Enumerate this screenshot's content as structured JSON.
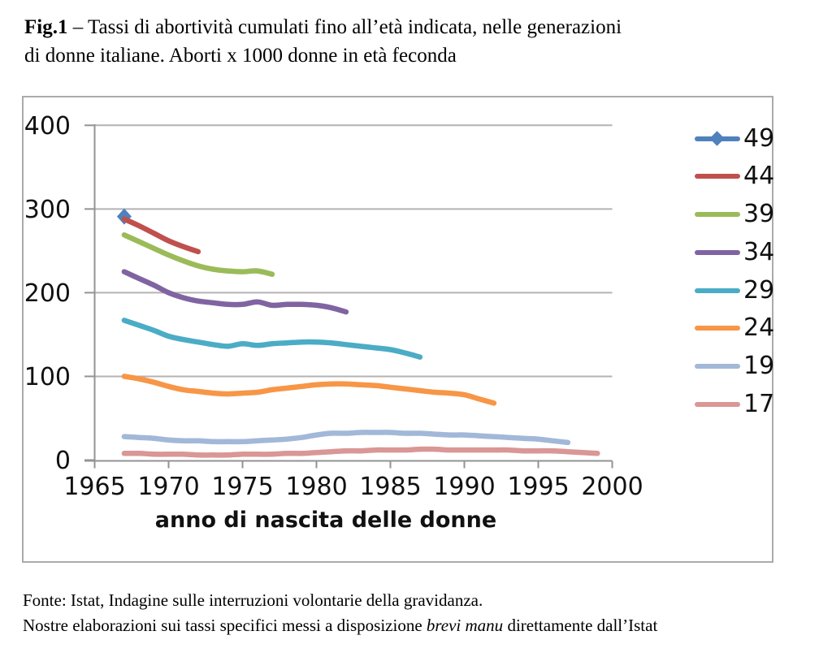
{
  "header": {
    "fig_label": "Fig.1",
    "title_line1": "– Tassi di abortività cumulati fino all’età indicata, nelle generazioni",
    "title_line2": "di donne italiane. Aborti x 1000 donne in età feconda"
  },
  "chart_data": {
    "type": "line",
    "xlabel": "anno di nascita delle donne",
    "ylabel": "",
    "xlim": [
      1965,
      2000
    ],
    "ylim": [
      0,
      400
    ],
    "xticks": [
      1965,
      1970,
      1975,
      1980,
      1985,
      1990,
      1995,
      2000
    ],
    "yticks": [
      0,
      100,
      200,
      300,
      400
    ],
    "grid": "horizontal",
    "legend_position": "right",
    "grid_color": "#B3B3B3",
    "axis_color": "#939393",
    "series": [
      {
        "name": "49",
        "color": "#4F81BD",
        "marker": "diamond",
        "points": [
          [
            1967,
            291
          ]
        ]
      },
      {
        "name": "44",
        "color": "#C0504D",
        "marker": "none",
        "points": [
          [
            1967,
            288
          ],
          [
            1968,
            280
          ],
          [
            1969,
            271
          ],
          [
            1970,
            262
          ],
          [
            1971,
            255
          ],
          [
            1972,
            249
          ]
        ]
      },
      {
        "name": "39",
        "color": "#9BBB59",
        "marker": "none",
        "points": [
          [
            1967,
            269
          ],
          [
            1968,
            261
          ],
          [
            1969,
            253
          ],
          [
            1970,
            245
          ],
          [
            1971,
            238
          ],
          [
            1972,
            232
          ],
          [
            1973,
            228
          ],
          [
            1974,
            226
          ],
          [
            1975,
            225
          ],
          [
            1976,
            226
          ],
          [
            1977,
            222
          ]
        ]
      },
      {
        "name": "34",
        "color": "#8064A2",
        "marker": "none",
        "points": [
          [
            1967,
            225
          ],
          [
            1968,
            217
          ],
          [
            1969,
            209
          ],
          [
            1970,
            200
          ],
          [
            1971,
            194
          ],
          [
            1972,
            190
          ],
          [
            1973,
            188
          ],
          [
            1974,
            186
          ],
          [
            1975,
            186
          ],
          [
            1976,
            189
          ],
          [
            1977,
            185
          ],
          [
            1978,
            186
          ],
          [
            1979,
            186
          ],
          [
            1980,
            185
          ],
          [
            1981,
            182
          ],
          [
            1982,
            177
          ]
        ]
      },
      {
        "name": "29",
        "color": "#4BACC6",
        "marker": "none",
        "points": [
          [
            1967,
            167
          ],
          [
            1968,
            161
          ],
          [
            1969,
            155
          ],
          [
            1970,
            148
          ],
          [
            1971,
            144
          ],
          [
            1972,
            141
          ],
          [
            1973,
            138
          ],
          [
            1974,
            136
          ],
          [
            1975,
            139
          ],
          [
            1976,
            137
          ],
          [
            1977,
            139
          ],
          [
            1978,
            140
          ],
          [
            1979,
            141
          ],
          [
            1980,
            141
          ],
          [
            1981,
            140
          ],
          [
            1982,
            138
          ],
          [
            1983,
            136
          ],
          [
            1984,
            134
          ],
          [
            1985,
            132
          ],
          [
            1986,
            128
          ],
          [
            1987,
            123
          ]
        ]
      },
      {
        "name": "24",
        "color": "#F79646",
        "marker": "none",
        "points": [
          [
            1967,
            100
          ],
          [
            1968,
            97
          ],
          [
            1969,
            93
          ],
          [
            1970,
            88
          ],
          [
            1971,
            84
          ],
          [
            1972,
            82
          ],
          [
            1973,
            80
          ],
          [
            1974,
            79
          ],
          [
            1975,
            80
          ],
          [
            1976,
            81
          ],
          [
            1977,
            84
          ],
          [
            1978,
            86
          ],
          [
            1979,
            88
          ],
          [
            1980,
            90
          ],
          [
            1981,
            91
          ],
          [
            1982,
            91
          ],
          [
            1983,
            90
          ],
          [
            1984,
            89
          ],
          [
            1985,
            87
          ],
          [
            1986,
            85
          ],
          [
            1987,
            83
          ],
          [
            1988,
            81
          ],
          [
            1989,
            80
          ],
          [
            1990,
            78
          ],
          [
            1991,
            73
          ],
          [
            1992,
            68
          ]
        ]
      },
      {
        "name": "19",
        "color": "#A2B8D8",
        "marker": "none",
        "points": [
          [
            1967,
            28
          ],
          [
            1968,
            27
          ],
          [
            1969,
            26
          ],
          [
            1970,
            24
          ],
          [
            1971,
            23
          ],
          [
            1972,
            23
          ],
          [
            1973,
            22
          ],
          [
            1974,
            22
          ],
          [
            1975,
            22
          ],
          [
            1976,
            23
          ],
          [
            1977,
            24
          ],
          [
            1978,
            25
          ],
          [
            1979,
            27
          ],
          [
            1980,
            30
          ],
          [
            1981,
            32
          ],
          [
            1982,
            32
          ],
          [
            1983,
            33
          ],
          [
            1984,
            33
          ],
          [
            1985,
            33
          ],
          [
            1986,
            32
          ],
          [
            1987,
            32
          ],
          [
            1988,
            31
          ],
          [
            1989,
            30
          ],
          [
            1990,
            30
          ],
          [
            1991,
            29
          ],
          [
            1992,
            28
          ],
          [
            1993,
            27
          ],
          [
            1994,
            26
          ],
          [
            1995,
            25
          ],
          [
            1996,
            23
          ],
          [
            1997,
            21
          ]
        ]
      },
      {
        "name": "17",
        "color": "#D99795",
        "marker": "none",
        "points": [
          [
            1967,
            8
          ],
          [
            1968,
            8
          ],
          [
            1969,
            7
          ],
          [
            1970,
            7
          ],
          [
            1971,
            7
          ],
          [
            1972,
            6
          ],
          [
            1973,
            6
          ],
          [
            1974,
            6
          ],
          [
            1975,
            7
          ],
          [
            1976,
            7
          ],
          [
            1977,
            7
          ],
          [
            1978,
            8
          ],
          [
            1979,
            8
          ],
          [
            1980,
            9
          ],
          [
            1981,
            10
          ],
          [
            1982,
            11
          ],
          [
            1983,
            11
          ],
          [
            1984,
            12
          ],
          [
            1985,
            12
          ],
          [
            1986,
            12
          ],
          [
            1987,
            13
          ],
          [
            1988,
            13
          ],
          [
            1989,
            12
          ],
          [
            1990,
            12
          ],
          [
            1991,
            12
          ],
          [
            1992,
            12
          ],
          [
            1993,
            12
          ],
          [
            1994,
            11
          ],
          [
            1995,
            11
          ],
          [
            1996,
            11
          ],
          [
            1997,
            10
          ],
          [
            1998,
            9
          ],
          [
            1999,
            8
          ]
        ]
      }
    ]
  },
  "footer": {
    "line1": "Fonte: Istat, Indagine sulle interruzioni volontarie della gravidanza.",
    "line2_pre": "Nostre elaborazioni sui tassi specifici messi a disposizione ",
    "line2_italic": "brevi manu",
    "line2_post": " direttamente dall’Istat"
  }
}
